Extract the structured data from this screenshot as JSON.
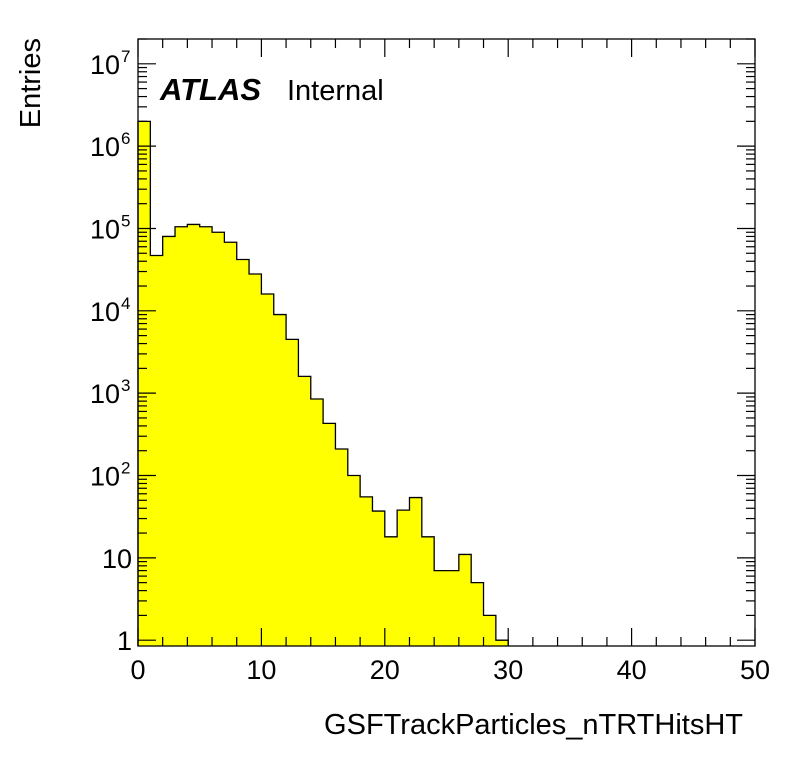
{
  "chart_data": {
    "type": "bar",
    "style": "filled step histogram",
    "fill_color": "#ffff00",
    "edge_color": "#000000",
    "bin_width": 1,
    "bin_edges_start": 0,
    "x": [
      0,
      1,
      2,
      3,
      4,
      5,
      6,
      7,
      8,
      9,
      10,
      11,
      12,
      13,
      14,
      15,
      16,
      17,
      18,
      19,
      20,
      21,
      22,
      23,
      24,
      25,
      26,
      27,
      28,
      29
    ],
    "values": [
      2000000,
      47000,
      80000,
      105000,
      112000,
      105000,
      90000,
      68000,
      42000,
      28000,
      16000,
      9000,
      4500,
      1600,
      850,
      430,
      210,
      100,
      55,
      37,
      18,
      38,
      54,
      18,
      7,
      7,
      11,
      5,
      2,
      1
    ],
    "xlabel": "GSFTrackParticles_nTRTHitsHT",
    "ylabel": "Entries",
    "xlim": [
      0,
      50
    ],
    "ylim": [
      0.85,
      20000000
    ],
    "y_scale": "log",
    "x_ticks": [
      {
        "value": 0,
        "label": "0"
      },
      {
        "value": 10,
        "label": "10"
      },
      {
        "value": 20,
        "label": "20"
      },
      {
        "value": 30,
        "label": "30"
      },
      {
        "value": 40,
        "label": "40"
      },
      {
        "value": 50,
        "label": "50"
      }
    ],
    "y_ticks": [
      {
        "value": 1,
        "label": "1",
        "exp": ""
      },
      {
        "value": 10,
        "label": "10",
        "exp": ""
      },
      {
        "value": 100,
        "label": "10",
        "exp": "2"
      },
      {
        "value": 1000,
        "label": "10",
        "exp": "3"
      },
      {
        "value": 10000,
        "label": "10",
        "exp": "4"
      },
      {
        "value": 100000,
        "label": "10",
        "exp": "5"
      },
      {
        "value": 1000000,
        "label": "10",
        "exp": "6"
      },
      {
        "value": 10000000,
        "label": "10",
        "exp": "7"
      }
    ],
    "grid": false
  },
  "annotation": {
    "experiment": "ATLAS",
    "status": "Internal"
  }
}
